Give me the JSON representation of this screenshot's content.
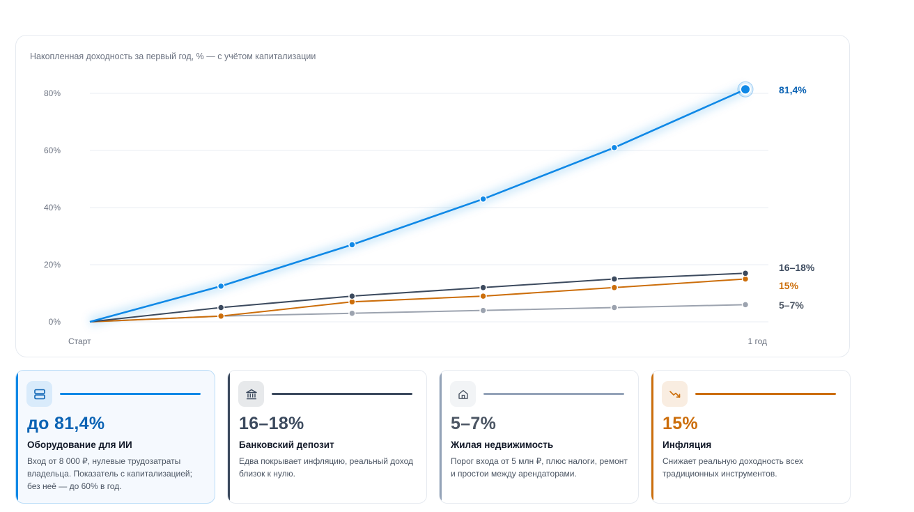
{
  "chart_data": {
    "type": "line",
    "title": "Накопленная доходность за первый год, % — с учётом капитализации",
    "x": [
      "Старт",
      "",
      "",
      "",
      "",
      "1 год"
    ],
    "ylim": [
      0,
      80
    ],
    "yticks": [
      "0%",
      "20%",
      "40%",
      "60%",
      "80%"
    ],
    "ytick_values": [
      0,
      20,
      40,
      60,
      80
    ],
    "grid": true,
    "series": [
      {
        "key": "equipment",
        "values": [
          0,
          12.5,
          27,
          43,
          61,
          81.4
        ],
        "color": "#0f88e6",
        "end_label": "81,4%",
        "label_color": "#0b63b4"
      },
      {
        "key": "deposit",
        "values": [
          0,
          5,
          9,
          12,
          15,
          17
        ],
        "color": "#3c4a5e",
        "end_label": "16–18%",
        "label_color": "#3c4a5e"
      },
      {
        "key": "inflation",
        "values": [
          0,
          2,
          7,
          9,
          12,
          15
        ],
        "color": "#cc6e0b",
        "end_label": "15%",
        "label_color": "#cc6e0b"
      },
      {
        "key": "realty",
        "values": [
          0,
          2,
          3,
          4,
          5,
          6
        ],
        "color": "#9ca3af",
        "end_label": "5–7%",
        "label_color": "#4b5563"
      }
    ]
  },
  "cards": [
    {
      "icon": "server-icon",
      "value": "до 81,4%",
      "name": "Оборудование для ИИ",
      "desc": "Вход от 8 000 ₽, нулевые трудозатраты владельца. Показатель с капитализацией; без неё — до 60% в год.",
      "color": "#0f88e6",
      "value_color": "#0b63b4"
    },
    {
      "icon": "bank-icon",
      "value": "16–18%",
      "name": "Банковский депозит",
      "desc": "Едва покрывает инфляцию, реальный доход близок к нулю.",
      "color": "#3c4a5e",
      "value_color": "#3c4a5e"
    },
    {
      "icon": "house-icon",
      "value": "5–7%",
      "name": "Жилая недвижимость",
      "desc": "Порог входа от 5 млн ₽, плюс налоги, ремонт и простои между арендаторами.",
      "color": "#94a3b8",
      "value_color": "#4b5563"
    },
    {
      "icon": "trend-down-icon",
      "value": "15%",
      "name": "Инфляция",
      "desc": "Снижает реальную доходность всех традиционных инструментов.",
      "color": "#cc6e0b",
      "value_color": "#cc6e0b"
    }
  ]
}
